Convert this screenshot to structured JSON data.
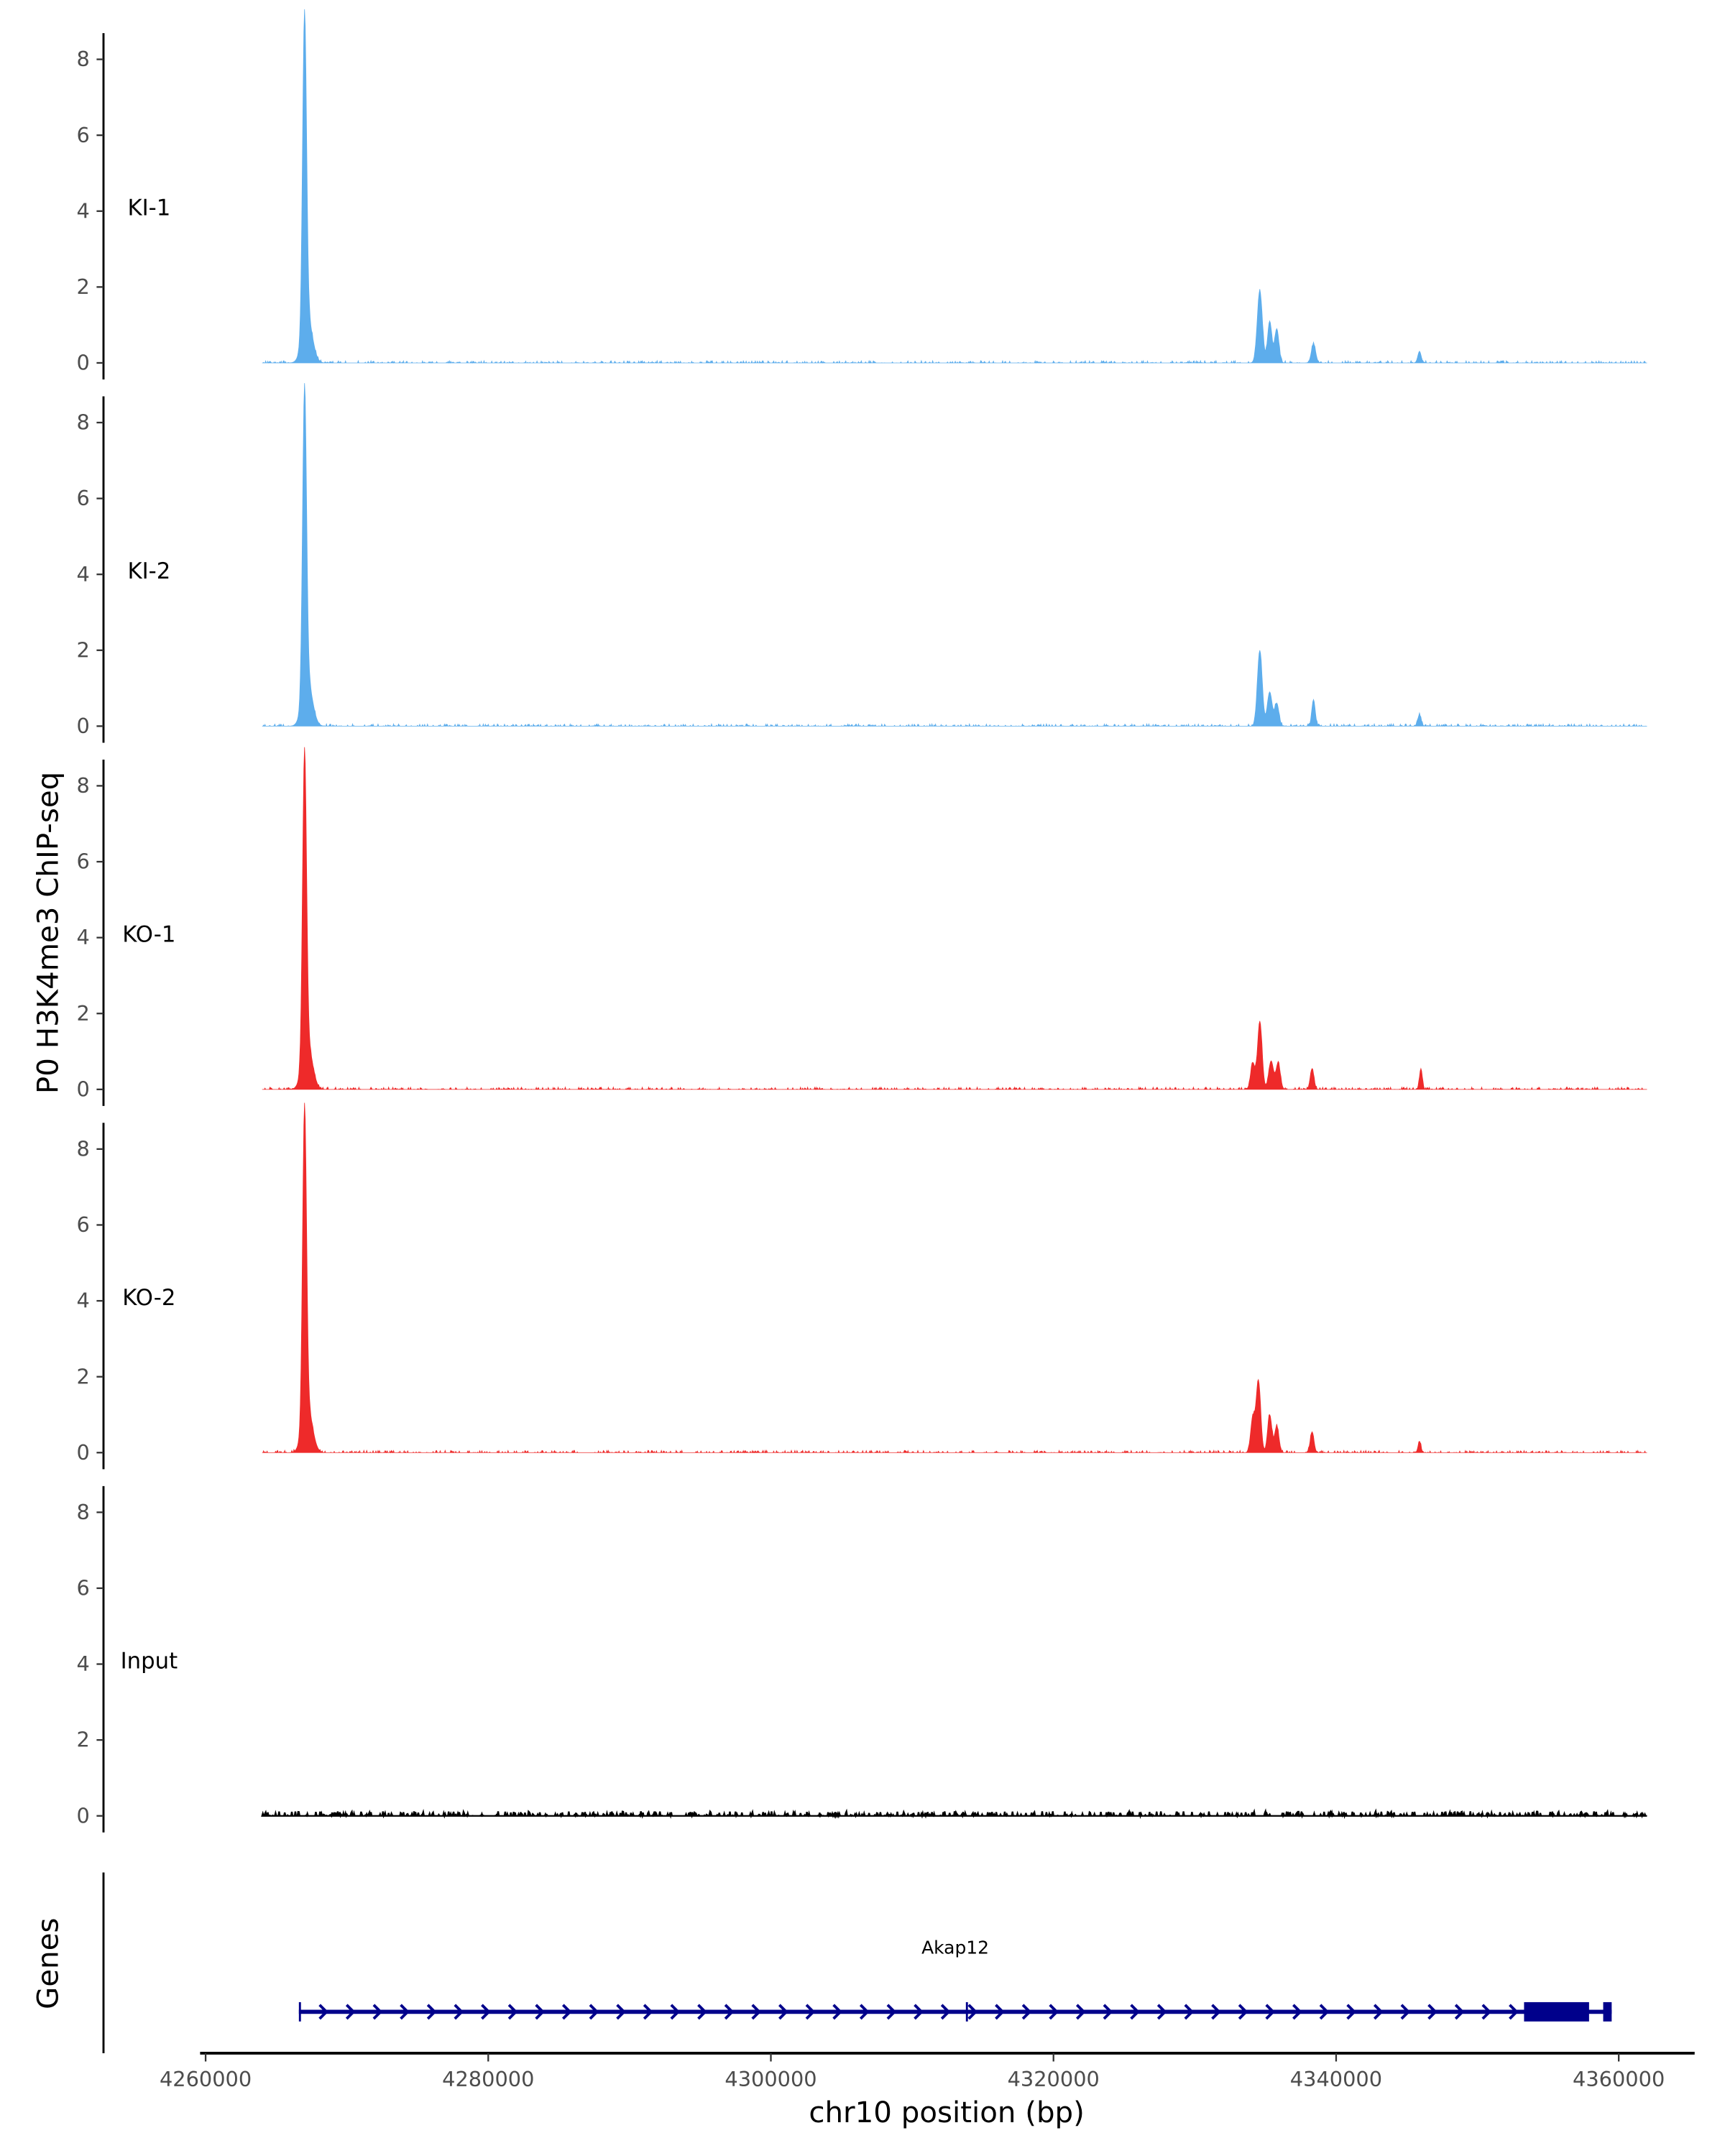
{
  "chart_data": {
    "type": "area",
    "ylabel": "P0 H3K4me3 ChIP-seq",
    "xlabel": "chr10 position (bp)",
    "xlim": [
      4262000,
      4367000
    ],
    "data_range": [
      4264000,
      4362000
    ],
    "ylim": [
      0,
      8.6
    ],
    "yticks": [
      "0",
      "2",
      "4",
      "6",
      "8"
    ],
    "xticks": [
      "4260000",
      "4280000",
      "4300000",
      "4320000",
      "4340000",
      "4360000"
    ],
    "xtick_values": [
      4260000,
      4280000,
      4300000,
      4320000,
      4340000,
      4360000
    ],
    "grid": false,
    "tracks": [
      {
        "name": "KI-1",
        "color": "#5DADEC",
        "peaks": [
          [
            4267000,
            8.3,
            140
          ],
          [
            4267200,
            1.2,
            350
          ],
          [
            4334600,
            1.9,
            180
          ],
          [
            4335300,
            1.1,
            150
          ],
          [
            4335800,
            0.9,
            150
          ],
          [
            4338400,
            0.5,
            150
          ],
          [
            4345900,
            0.3,
            120
          ]
        ]
      },
      {
        "name": "KI-2",
        "color": "#5DADEC",
        "peaks": [
          [
            4267000,
            8.0,
            140
          ],
          [
            4267200,
            1.2,
            350
          ],
          [
            4334600,
            2.0,
            170
          ],
          [
            4335300,
            0.9,
            170
          ],
          [
            4335800,
            0.6,
            150
          ],
          [
            4338400,
            0.7,
            120
          ],
          [
            4345900,
            0.3,
            120
          ]
        ]
      },
      {
        "name": "KO-1",
        "color": "#EE2A2A",
        "peaks": [
          [
            4267000,
            8.0,
            140
          ],
          [
            4267200,
            1.2,
            350
          ],
          [
            4334100,
            0.7,
            150
          ],
          [
            4334600,
            1.8,
            160
          ],
          [
            4335400,
            0.75,
            170
          ],
          [
            4335900,
            0.7,
            150
          ],
          [
            4338300,
            0.55,
            130
          ],
          [
            4346000,
            0.55,
            100
          ]
        ]
      },
      {
        "name": "KO-2",
        "color": "#EE2A2A",
        "peaks": [
          [
            4267000,
            8.2,
            140
          ],
          [
            4267200,
            1.2,
            350
          ],
          [
            4334100,
            0.9,
            150
          ],
          [
            4334500,
            1.9,
            160
          ],
          [
            4335300,
            1.0,
            150
          ],
          [
            4335800,
            0.7,
            150
          ],
          [
            4338300,
            0.55,
            130
          ],
          [
            4345900,
            0.3,
            100
          ]
        ]
      },
      {
        "name": "Input",
        "color": "#000000",
        "peaks": []
      }
    ],
    "genes": {
      "label": "Genes",
      "items": [
        {
          "name": "Akap12",
          "start": 4266600,
          "end": 4359500,
          "strand": "+",
          "color": "#00008B",
          "exons": [
            [
              4266600,
              4266700
            ],
            [
              4313800,
              4313850
            ],
            [
              4353300,
              4357900
            ],
            [
              4358900,
              4359500
            ]
          ]
        }
      ]
    }
  }
}
